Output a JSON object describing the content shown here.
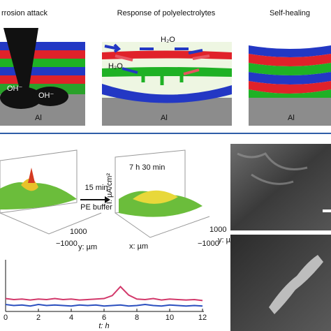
{
  "top": {
    "titles": [
      "rrosion attack",
      "Response of polyelectrolytes",
      "Self-healing"
    ],
    "labels": {
      "h2o_a": "H₂O",
      "h2o_b": "H₂O",
      "oh_a": "OH⁻",
      "oh_b": "OH⁻",
      "al_a": "Al",
      "al_b": "Al",
      "al_c": "Al"
    }
  },
  "plots3d": {
    "arrow_top": "15 min",
    "arrow_bottom": "PE buffer",
    "time": "7 h 30 min",
    "z_label": "I: µA/cm²",
    "left_ticks": [
      "1000",
      "−1000"
    ],
    "left_y": "y: µm",
    "right_ticks": [
      "1000",
      "−1000"
    ],
    "right_y": "y: µm",
    "right_x": "x: µm"
  },
  "line_plot": {
    "x": [
      0,
      0.5,
      1,
      1.5,
      2,
      2.5,
      3,
      3.5,
      4,
      4.5,
      5,
      5.5,
      6,
      6.5,
      7,
      7.5,
      8,
      8.5,
      9,
      9.5,
      10,
      10.5,
      11,
      11.5,
      12
    ],
    "series": [
      {
        "color": "#d2386a",
        "values": [
          2.6,
          2.4,
          2.5,
          2.3,
          2.5,
          2.4,
          2.6,
          2.4,
          2.5,
          2.3,
          2.4,
          2.5,
          2.6,
          3.2,
          5.0,
          3.3,
          2.5,
          2.4,
          2.6,
          2.3,
          2.5,
          2.4,
          2.3,
          2.4,
          2.2
        ]
      },
      {
        "color": "#2a4fbf",
        "values": [
          1.4,
          1.2,
          1.3,
          1.1,
          1.4,
          1.2,
          1.3,
          1.2,
          1.1,
          1.3,
          1.2,
          1.3,
          1.1,
          1.2,
          1.3,
          1.1,
          1.2,
          1.4,
          1.2,
          1.1,
          1.3,
          1.2,
          1.1,
          1.2,
          1.1
        ]
      }
    ],
    "xlim": [
      0,
      12
    ],
    "ylim": [
      0,
      10
    ],
    "xticks": [
      0,
      2,
      4,
      6,
      8,
      10,
      12
    ],
    "xlabel": "t: h"
  }
}
